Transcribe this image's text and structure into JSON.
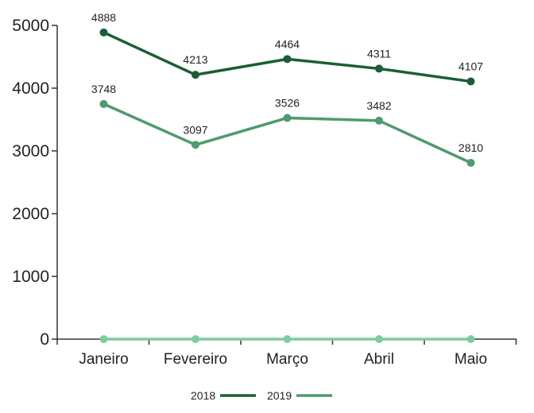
{
  "chart_data": {
    "type": "line",
    "title": "",
    "xlabel": "",
    "ylabel": "",
    "categories": [
      "Janeiro",
      "Fevereiro",
      "Março",
      "Abril",
      "Maio"
    ],
    "ylim": [
      0,
      5000
    ],
    "yticks": [
      "0",
      "1000",
      "2000",
      "3000",
      "4000",
      "5000"
    ],
    "grid": false,
    "legend_position": "bottom",
    "series": [
      {
        "name": "2018",
        "values": [
          4888,
          4213,
          4464,
          4311,
          4107
        ],
        "labels": [
          "4888",
          "4213",
          "4464",
          "4311",
          "4107"
        ],
        "color": "#1b5e34"
      },
      {
        "name": "2019",
        "values": [
          3748,
          3097,
          3526,
          3482,
          2810
        ],
        "labels": [
          "3748",
          "3097",
          "3526",
          "3482",
          "2810"
        ],
        "color": "#4f9a70"
      },
      {
        "values": [
          0,
          0,
          0,
          0,
          0
        ],
        "color": "#7fcc9c"
      }
    ]
  }
}
